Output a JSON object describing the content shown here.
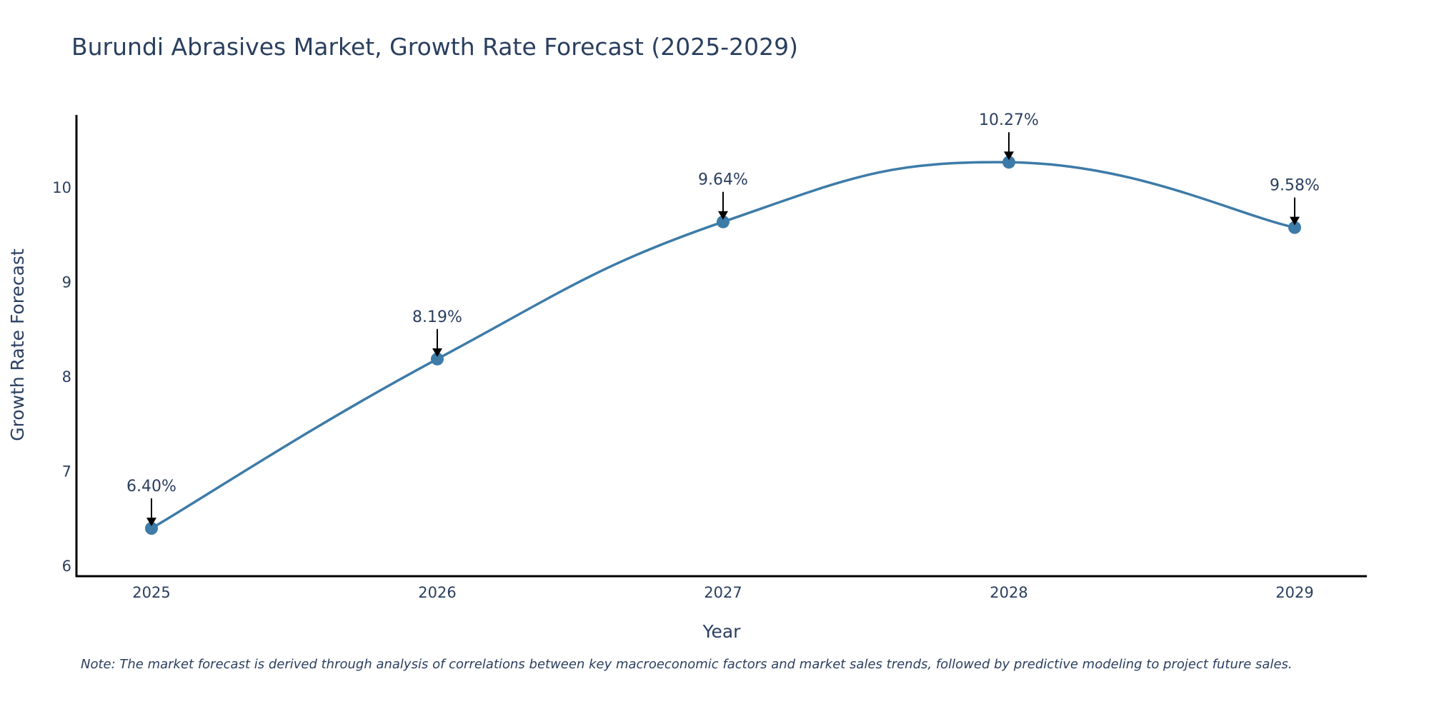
{
  "chart_data": {
    "type": "line",
    "title": "Burundi Abrasives Market, Growth Rate Forecast (2025-2029)",
    "xlabel": "Year",
    "ylabel": "Growth Rate Forecast",
    "categories": [
      "2025",
      "2026",
      "2027",
      "2028",
      "2029"
    ],
    "values": [
      6.4,
      8.19,
      9.64,
      10.27,
      9.58
    ],
    "data_labels": [
      "6.40%",
      "8.19%",
      "9.64%",
      "10.27%",
      "9.58%"
    ],
    "yticks": [
      6,
      7,
      8,
      9,
      10
    ],
    "ylim": [
      5.9,
      10.8
    ],
    "grid": false,
    "line_color": "#3d7ba8",
    "marker_color": "#3d7ba8",
    "arrow_color": "#000000",
    "note": "Note: The market forecast is derived through analysis of correlations between key macroeconomic factors and market sales trends, followed by predictive modeling to project future sales."
  }
}
